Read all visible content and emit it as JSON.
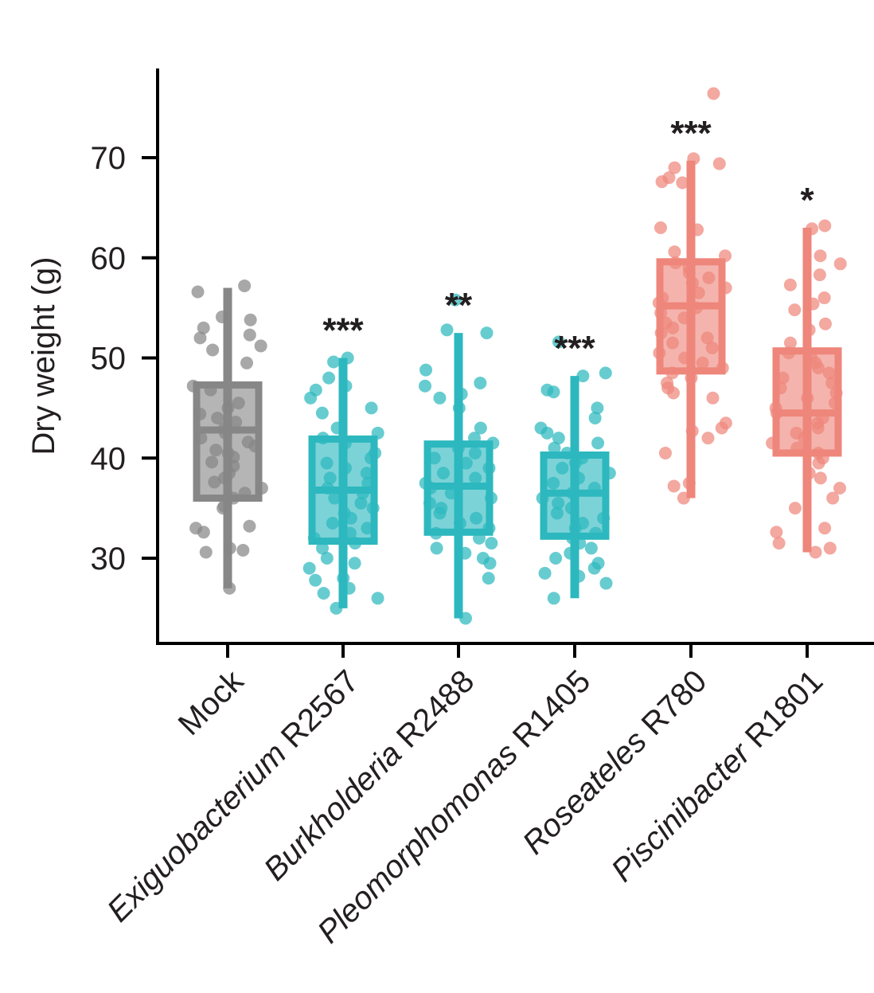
{
  "chart_data": {
    "type": "box",
    "title": "",
    "xlabel": "",
    "ylabel": "Dry weight (g)",
    "ylim": [
      22,
      79
    ],
    "yticks": [
      30,
      40,
      50,
      60,
      70
    ],
    "grid": false,
    "categories": [
      {
        "genus": "Mock",
        "strain": ""
      },
      {
        "genus": "Exiguobacterium",
        "strain": " R2567"
      },
      {
        "genus": "Burkholderia",
        "strain": " R2488"
      },
      {
        "genus": "Pleomorphomonas",
        "strain": " R1405"
      },
      {
        "genus": "Roseateles",
        "strain": " R780"
      },
      {
        "genus": "Piscinibacter",
        "strain": " R1801"
      }
    ],
    "colors": [
      "#878787",
      "#2cb8be",
      "#2cb8be",
      "#2cb8be",
      "#ee867b",
      "#ee867b"
    ],
    "boxes": [
      {
        "whisker_low": 27,
        "q1": 36,
        "median": 42.8,
        "q3": 47.3,
        "whisker_high": 57,
        "significance": "",
        "points": [
          57.2,
          56.6,
          54.1,
          53.8,
          53.0,
          52.3,
          52.0,
          51.2,
          50.8,
          49.5,
          47.2,
          46.8,
          45.5,
          45.0,
          44.4,
          44.0,
          43.6,
          43.0,
          42.5,
          42.0,
          41.6,
          41.2,
          40.8,
          40.5,
          40.1,
          39.6,
          39.2,
          38.5,
          38.0,
          37.6,
          37.0,
          36.5,
          36.0,
          35.2,
          35.0,
          33.2,
          33.0,
          32.6,
          31.0,
          30.8,
          30.6,
          27.0
        ]
      },
      {
        "whisker_low": 25,
        "q1": 31.7,
        "median": 36.8,
        "q3": 41.9,
        "whisker_high": 50,
        "significance": "***",
        "points": [
          50.0,
          49.6,
          48.0,
          47.2,
          46.8,
          46.0,
          45.0,
          44.5,
          43.0,
          42.5,
          42.0,
          41.5,
          40.5,
          40.0,
          39.5,
          39.0,
          38.5,
          38.0,
          37.5,
          37.0,
          36.5,
          36.0,
          35.5,
          35.0,
          34.5,
          34.0,
          33.5,
          33.0,
          32.5,
          32.0,
          31.5,
          31.0,
          30.0,
          29.5,
          29.0,
          28.0,
          27.8,
          27.0,
          26.5,
          26.0,
          25.0
        ]
      },
      {
        "whisker_low": 24,
        "q1": 32.6,
        "median": 37.2,
        "q3": 41.4,
        "whisker_high": 52.5,
        "significance": "**",
        "points": [
          55.8,
          52.8,
          52.5,
          48.8,
          47.5,
          47.2,
          46.4,
          46.0,
          45.0,
          43.0,
          42.0,
          41.5,
          41.0,
          40.5,
          40.0,
          39.5,
          39.0,
          38.5,
          38.0,
          37.5,
          37.0,
          36.5,
          36.0,
          35.5,
          35.0,
          34.5,
          34.0,
          33.5,
          33.0,
          32.5,
          32.0,
          31.5,
          31.0,
          30.5,
          30.0,
          29.5,
          28.0,
          24.0
        ]
      },
      {
        "whisker_low": 26,
        "q1": 32.2,
        "median": 36.5,
        "q3": 40.3,
        "whisker_high": 48.2,
        "significance": "***",
        "points": [
          51.6,
          48.5,
          48.2,
          46.8,
          46.6,
          45.0,
          44.0,
          43.0,
          42.5,
          42.0,
          41.5,
          41.0,
          40.5,
          40.0,
          39.5,
          39.0,
          38.5,
          38.0,
          37.5,
          37.0,
          36.5,
          36.0,
          35.5,
          35.0,
          34.5,
          34.0,
          33.5,
          33.0,
          32.5,
          32.0,
          31.5,
          31.0,
          30.5,
          30.0,
          29.5,
          29.0,
          28.5,
          28.2,
          27.5,
          26.0
        ]
      },
      {
        "whisker_low": 36,
        "q1": 48.7,
        "median": 55.2,
        "q3": 59.6,
        "whisker_high": 69.7,
        "significance": "***",
        "points": [
          76.4,
          69.9,
          69.4,
          69.0,
          68.0,
          67.6,
          67.5,
          63.0,
          62.8,
          60.6,
          60.2,
          59.5,
          59.0,
          58.5,
          58.0,
          57.5,
          57.0,
          56.5,
          56.0,
          55.5,
          55.0,
          54.5,
          54.0,
          53.5,
          53.0,
          52.5,
          52.0,
          51.5,
          51.0,
          50.5,
          50.0,
          49.5,
          49.0,
          48.5,
          48.0,
          47.5,
          47.0,
          46.5,
          46.0,
          43.5,
          43.0,
          42.7,
          42.0,
          40.5,
          37.5,
          37.2,
          36.0
        ]
      },
      {
        "whisker_low": 30.6,
        "q1": 40.5,
        "median": 44.5,
        "q3": 50.7,
        "whisker_high": 63,
        "significance": "*",
        "points": [
          63.2,
          62.9,
          60.2,
          59.4,
          58.3,
          57.3,
          56.0,
          55.4,
          54.8,
          53.4,
          52.8,
          51.5,
          50.5,
          50.0,
          49.5,
          49.0,
          48.5,
          48.0,
          47.5,
          47.0,
          46.5,
          46.0,
          45.5,
          45.0,
          44.5,
          44.0,
          43.5,
          43.0,
          42.5,
          42.0,
          41.5,
          41.0,
          40.5,
          40.0,
          39.5,
          38.5,
          38.0,
          37.0,
          36.0,
          35.0,
          33.0,
          32.6,
          31.5,
          31.0,
          30.6
        ]
      }
    ]
  }
}
